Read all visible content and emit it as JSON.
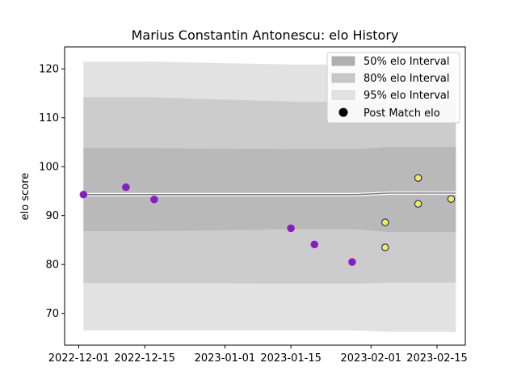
{
  "chart_data": {
    "type": "area",
    "title": "Marius Constantin Antonescu: elo History",
    "xlabel": "",
    "ylabel": "elo score",
    "ylim": [
      63.5,
      124.5
    ],
    "xlim": [
      "2022-11-28",
      "2023-02-21"
    ],
    "x_ticks": [
      "2022-12-01",
      "2022-12-15",
      "2023-01-01",
      "2023-01-15",
      "2023-02-01",
      "2023-02-15"
    ],
    "y_ticks": [
      70,
      80,
      90,
      100,
      110,
      120
    ],
    "grid": false,
    "legend_position": "top-right",
    "bands": {
      "x": [
        "2022-12-02",
        "2022-12-16",
        "2023-01-15",
        "2023-01-29",
        "2023-02-05",
        "2023-02-19"
      ],
      "mean": [
        94.3,
        94.3,
        94.3,
        94.3,
        94.6,
        94.6
      ],
      "p50": {
        "low": [
          86.8,
          86.8,
          87.2,
          87.2,
          86.6,
          86.6
        ],
        "high": [
          103.8,
          103.8,
          103.6,
          103.6,
          104.0,
          104.0
        ]
      },
      "p80": {
        "low": [
          76.2,
          76.2,
          76.1,
          76.1,
          76.3,
          76.3
        ],
        "high": [
          114.2,
          114.2,
          113.3,
          113.3,
          113.0,
          113.0
        ]
      },
      "p95": {
        "low": [
          66.5,
          66.5,
          66.5,
          66.5,
          66.2,
          66.2
        ],
        "high": [
          121.5,
          121.5,
          120.9,
          120.9,
          121.0,
          121.0
        ]
      }
    },
    "series": [
      {
        "name": "50% elo Interval",
        "color": "#b0b0b0"
      },
      {
        "name": "80% elo Interval",
        "color": "#c8c8c8"
      },
      {
        "name": "95% elo Interval",
        "color": "#e2e2e2"
      },
      {
        "name": "Post Match elo",
        "color": "#000000"
      }
    ],
    "points": [
      {
        "x": "2022-12-02",
        "y": 94.3,
        "style": "purple"
      },
      {
        "x": "2022-12-11",
        "y": 95.8,
        "style": "purple"
      },
      {
        "x": "2022-12-17",
        "y": 93.3,
        "style": "purple"
      },
      {
        "x": "2023-01-15",
        "y": 87.4,
        "style": "purple"
      },
      {
        "x": "2023-01-20",
        "y": 84.1,
        "style": "purple"
      },
      {
        "x": "2023-01-28",
        "y": 80.5,
        "style": "purple"
      },
      {
        "x": "2023-02-04",
        "y": 88.6,
        "style": "yellow"
      },
      {
        "x": "2023-02-04",
        "y": 83.5,
        "style": "yellow"
      },
      {
        "x": "2023-02-11",
        "y": 97.7,
        "style": "yellow"
      },
      {
        "x": "2023-02-11",
        "y": 92.4,
        "style": "yellow"
      },
      {
        "x": "2023-02-18",
        "y": 93.4,
        "style": "yellow"
      }
    ],
    "point_styles": {
      "purple": {
        "fill": "#8a1cc4",
        "stroke": "#8a1cc4"
      },
      "yellow": {
        "fill": "#f5f03a",
        "stroke": "#1e1ea8"
      }
    }
  }
}
